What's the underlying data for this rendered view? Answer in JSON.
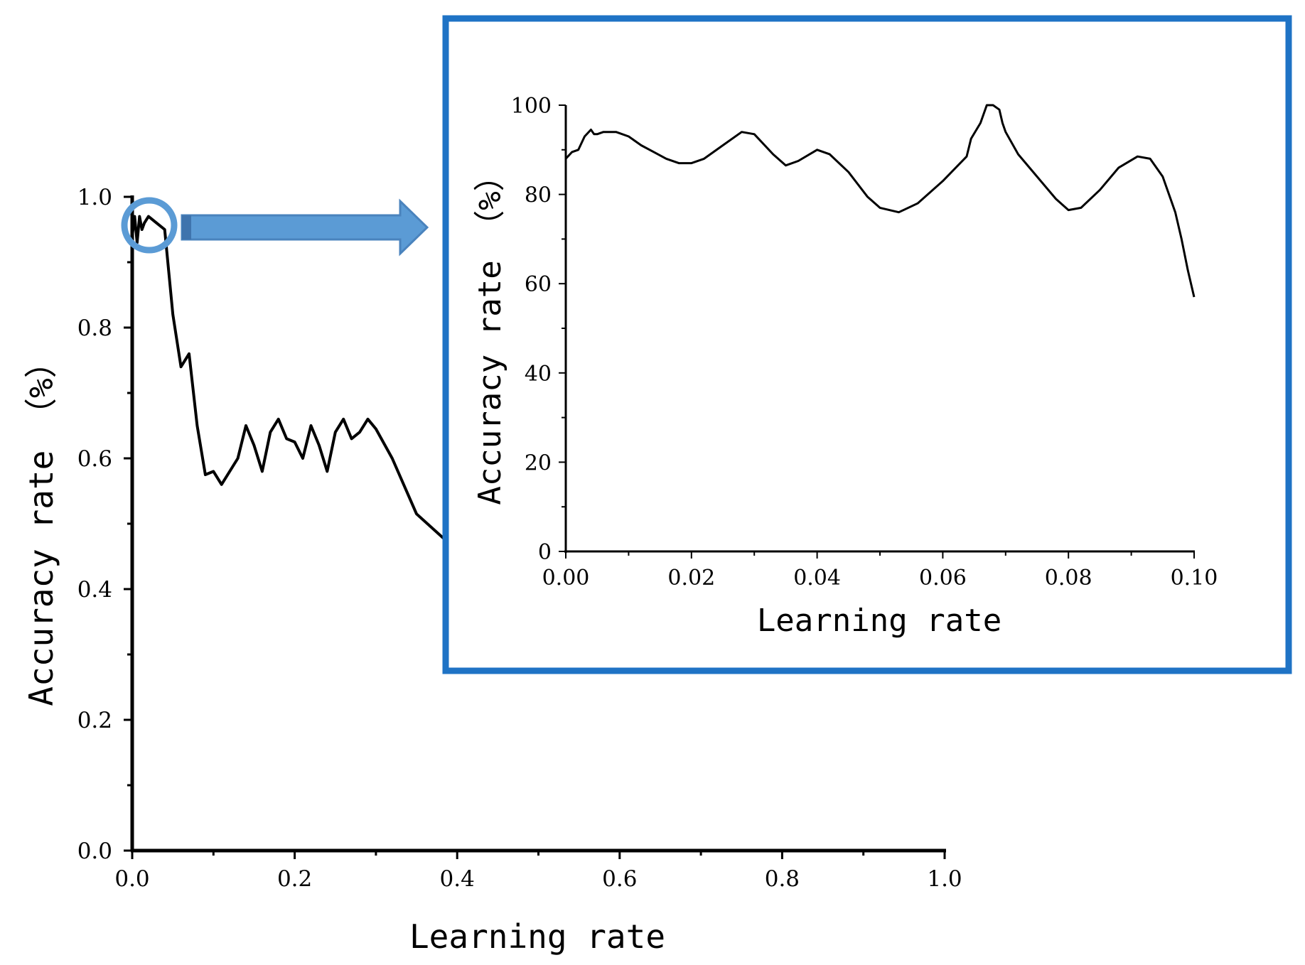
{
  "colors": {
    "line": "#000000",
    "highlight": "#2f78c4",
    "arrow_fill": "#5b9bd5",
    "arrow_stroke": "#4a83bd"
  },
  "chart_data": [
    {
      "type": "line",
      "id": "main",
      "xlabel": "Learning rate",
      "ylabel": "Accuracy rate （%）",
      "xlim": [
        0,
        1.0
      ],
      "ylim": [
        0,
        1.0
      ],
      "x_tick_labels": [
        "0.0",
        "0.2",
        "0.4",
        "0.6",
        "0.8",
        "1.0"
      ],
      "y_tick_labels": [
        "0.0",
        "0.2",
        "0.4",
        "0.6",
        "0.8",
        "1.0"
      ],
      "series": [
        {
          "name": "accuracy",
          "x": [
            0.0,
            0.003,
            0.006,
            0.009,
            0.012,
            0.015,
            0.02,
            0.03,
            0.04,
            0.05,
            0.06,
            0.07,
            0.08,
            0.09,
            0.1,
            0.11,
            0.13,
            0.14,
            0.15,
            0.16,
            0.17,
            0.18,
            0.19,
            0.2,
            0.21,
            0.22,
            0.23,
            0.24,
            0.25,
            0.26,
            0.27,
            0.28,
            0.29,
            0.3,
            0.32,
            0.35,
            0.39
          ],
          "y": [
            0.94,
            0.97,
            0.93,
            0.97,
            0.95,
            0.96,
            0.97,
            0.96,
            0.95,
            0.82,
            0.74,
            0.76,
            0.65,
            0.575,
            0.58,
            0.56,
            0.6,
            0.65,
            0.62,
            0.58,
            0.64,
            0.66,
            0.63,
            0.625,
            0.6,
            0.65,
            0.62,
            0.58,
            0.64,
            0.66,
            0.63,
            0.64,
            0.66,
            0.645,
            0.6,
            0.515,
            0.47
          ]
        }
      ]
    },
    {
      "type": "line",
      "id": "inset",
      "xlabel": "Learning rate",
      "ylabel": "Accuracy rate （%）",
      "xlim": [
        0,
        0.1
      ],
      "ylim": [
        0,
        100
      ],
      "x_tick_labels": [
        "0.00",
        "0.02",
        "0.04",
        "0.06",
        "0.08",
        "0.10"
      ],
      "y_tick_labels": [
        "0",
        "20",
        "40",
        "60",
        "80",
        "100"
      ],
      "series": [
        {
          "name": "accuracy",
          "x": [
            0.0,
            0.001,
            0.002,
            0.003,
            0.004,
            0.0045,
            0.005,
            0.006,
            0.008,
            0.01,
            0.012,
            0.014,
            0.016,
            0.018,
            0.02,
            0.022,
            0.025,
            0.028,
            0.03,
            0.033,
            0.035,
            0.037,
            0.04,
            0.042,
            0.045,
            0.048,
            0.05,
            0.053,
            0.056,
            0.06,
            0.0638,
            0.0645,
            0.066,
            0.067,
            0.068,
            0.069,
            0.0695,
            0.07,
            0.072,
            0.075,
            0.078,
            0.08,
            0.082,
            0.085,
            0.088,
            0.091,
            0.093,
            0.095,
            0.097,
            0.098,
            0.099,
            0.1
          ],
          "y": [
            88,
            89.5,
            90,
            93,
            94.5,
            93.5,
            93.5,
            94,
            94,
            93,
            91,
            89.5,
            88,
            87,
            87,
            88,
            91,
            94,
            93.5,
            89,
            86.5,
            87.5,
            90,
            89,
            85,
            79.5,
            77,
            76,
            78,
            83,
            88.5,
            92.5,
            96,
            100,
            100,
            99,
            96,
            94,
            89,
            84,
            79,
            76.5,
            77,
            81,
            86,
            88.5,
            88,
            84,
            76,
            70,
            63,
            57
          ]
        }
      ]
    }
  ]
}
